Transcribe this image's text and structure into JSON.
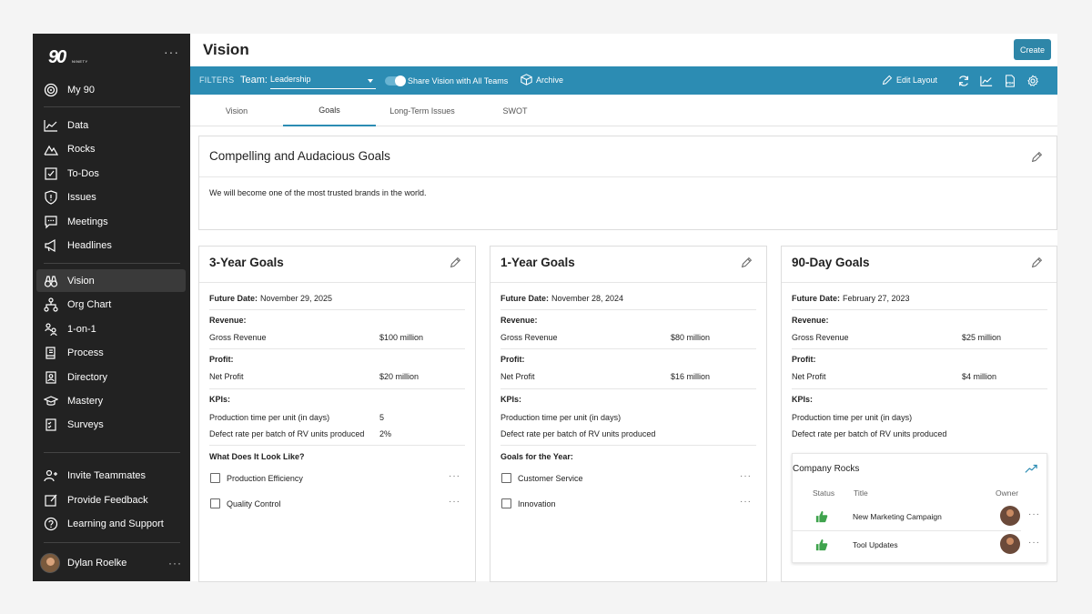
{
  "sidebar": {
    "logo": "90",
    "logo_small": "NINETY",
    "menu_dots": "···",
    "top_item": {
      "label": "My 90",
      "icon": "target-icon"
    },
    "items": [
      {
        "label": "Data",
        "icon": "chart-line-icon"
      },
      {
        "label": "Rocks",
        "icon": "mountain-icon"
      },
      {
        "label": "To-Dos",
        "icon": "checkbox-icon"
      },
      {
        "label": "Issues",
        "icon": "shield-alert-icon"
      },
      {
        "label": "Meetings",
        "icon": "chat-icon"
      },
      {
        "label": "Headlines",
        "icon": "megaphone-icon"
      }
    ],
    "items2": [
      {
        "label": "Vision",
        "icon": "binoculars-icon",
        "active": true
      },
      {
        "label": "Org Chart",
        "icon": "org-chart-icon"
      },
      {
        "label": "1-on-1",
        "icon": "one-on-one-icon"
      },
      {
        "label": "Process",
        "icon": "book-icon"
      },
      {
        "label": "Directory",
        "icon": "address-book-icon"
      },
      {
        "label": "Mastery",
        "icon": "graduation-cap-icon"
      },
      {
        "label": "Surveys",
        "icon": "survey-icon"
      }
    ],
    "bottom": [
      {
        "label": "Invite Teammates",
        "icon": "add-user-icon"
      },
      {
        "label": "Provide Feedback",
        "icon": "edit-icon"
      },
      {
        "label": "Learning and Support",
        "icon": "help-icon"
      }
    ],
    "user": {
      "name": "Dylan Roelke",
      "dots": "···"
    }
  },
  "header": {
    "title": "Vision",
    "create_label": "Create"
  },
  "filters": {
    "label": "FILTERS",
    "team_label": "Team:",
    "team_value": "Leadership",
    "share_label": "Share Vision with All Teams",
    "share_on": true,
    "archive_label": "Archive",
    "edit_layout_label": "Edit Layout",
    "pdf_label": "PDF"
  },
  "tabs": [
    "Vision",
    "Goals",
    "Long-Term Issues",
    "SWOT"
  ],
  "active_tab": "Goals",
  "compelling": {
    "title": "Compelling and Audacious Goals",
    "text": "We will become one of the most trusted brands in the world."
  },
  "goals": [
    {
      "title": "3-Year Goals",
      "future_label": "Future Date:",
      "future_date": "November 29, 2025",
      "revenue_label": "Revenue:",
      "revenue_name": "Gross Revenue",
      "revenue_value": "$100 million",
      "profit_label": "Profit:",
      "profit_name": "Net Profit",
      "profit_value": "$20 million",
      "kpi_label": "KPIs:",
      "kpis": [
        {
          "name": "Production time per unit (in days)",
          "value": "5"
        },
        {
          "name": "Defect rate per batch of RV units produced",
          "value": "2%"
        }
      ],
      "list_label": "What Does It Look Like?",
      "list": [
        "Production Efficiency",
        "Quality Control"
      ]
    },
    {
      "title": "1-Year Goals",
      "future_label": "Future Date:",
      "future_date": "November 28, 2024",
      "revenue_label": "Revenue:",
      "revenue_name": "Gross Revenue",
      "revenue_value": "$80 million",
      "profit_label": "Profit:",
      "profit_name": "Net Profit",
      "profit_value": "$16 million",
      "kpi_label": "KPIs:",
      "kpis": [
        {
          "name": "Production time per unit (in days)",
          "value": ""
        },
        {
          "name": "Defect rate per batch of RV units produced",
          "value": ""
        }
      ],
      "list_label": "Goals for the Year:",
      "list": [
        "Customer Service",
        "Innovation"
      ]
    },
    {
      "title": "90-Day Goals",
      "future_label": "Future Date:",
      "future_date": "February 27, 2023",
      "revenue_label": "Revenue:",
      "revenue_name": "Gross Revenue",
      "revenue_value": "$25 million",
      "profit_label": "Profit:",
      "profit_name": "Net Profit",
      "profit_value": "$4 million",
      "kpi_label": "KPIs:",
      "kpis": [
        {
          "name": "Production time per unit (in days)",
          "value": ""
        },
        {
          "name": "Defect rate per batch of RV units produced",
          "value": ""
        }
      ]
    }
  ],
  "rocks": {
    "title": "Company Rocks",
    "col_status": "Status",
    "col_title": "Title",
    "col_owner": "Owner",
    "rows": [
      {
        "title": "New Marketing Campaign",
        "status": "on-track"
      },
      {
        "title": "Tool Updates",
        "status": "on-track"
      }
    ]
  },
  "colors": {
    "accent": "#2c8cb3",
    "sidebar": "#222222",
    "on_track": "#3fa34d"
  },
  "more_glyph": "···"
}
